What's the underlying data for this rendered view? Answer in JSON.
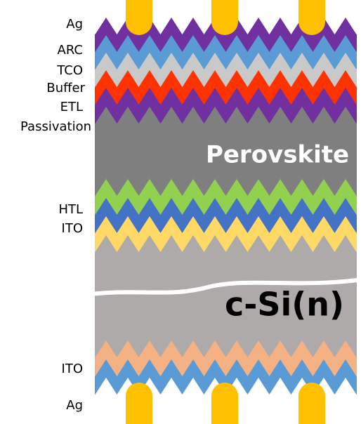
{
  "labels": [
    "Ag",
    "ARC",
    "TCO",
    "Buffer",
    "ETL",
    "Passivation",
    "HTL",
    "ITO",
    "ITO",
    "Ag"
  ],
  "perovskite": "Perovskite",
  "silicon": "c-Si(n)"
}
